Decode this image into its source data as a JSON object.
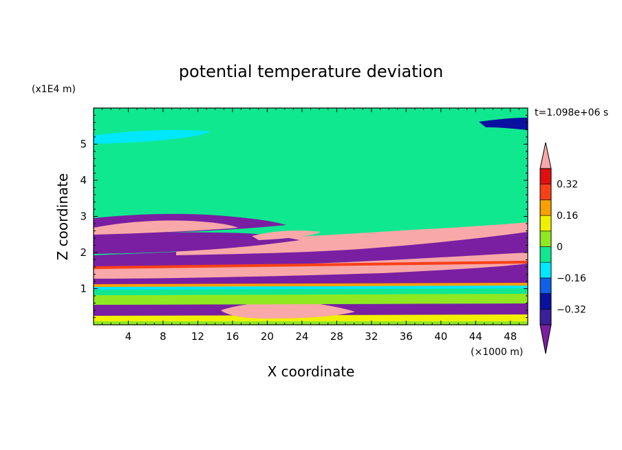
{
  "chart_data": {
    "type": "heatmap",
    "title": "potential temperature deviation",
    "xlabel": "X coordinate",
    "ylabel": "Z coordinate",
    "x_unit": "(×1000 m)",
    "y_unit": "(x1E4 m)",
    "time_label": "t=1.098e+06 s",
    "xlim": [
      0,
      50
    ],
    "ylim": [
      0,
      6
    ],
    "x_ticks": [
      4,
      8,
      12,
      16,
      20,
      24,
      28,
      32,
      36,
      40,
      44,
      48
    ],
    "x_tick_labels": [
      "4",
      "8",
      "12",
      "16",
      "20",
      "24",
      "28",
      "32",
      "36",
      "40",
      "44",
      "48"
    ],
    "y_ticks": [
      1,
      2,
      3,
      4,
      5
    ],
    "y_tick_labels": [
      "1",
      "2",
      "3",
      "4",
      "5"
    ],
    "colorbar": {
      "levels": [
        -0.4,
        -0.32,
        -0.24,
        -0.16,
        -0.08,
        0,
        0.08,
        0.16,
        0.24,
        0.32,
        0.4
      ],
      "tick_values": [
        0.32,
        0.16,
        0,
        -0.16,
        -0.32
      ],
      "tick_labels": [
        "0.32",
        "0.16",
        "0",
        "−0.16",
        "−0.32"
      ],
      "colors": [
        "#7a1fa2",
        "#3a1f9a",
        "#0a10a0",
        "#1060e8",
        "#00e8ff",
        "#10e890",
        "#90e820",
        "#f0f000",
        "#f8a000",
        "#f84018",
        "#e01010",
        "#f8a8a8"
      ]
    }
  }
}
